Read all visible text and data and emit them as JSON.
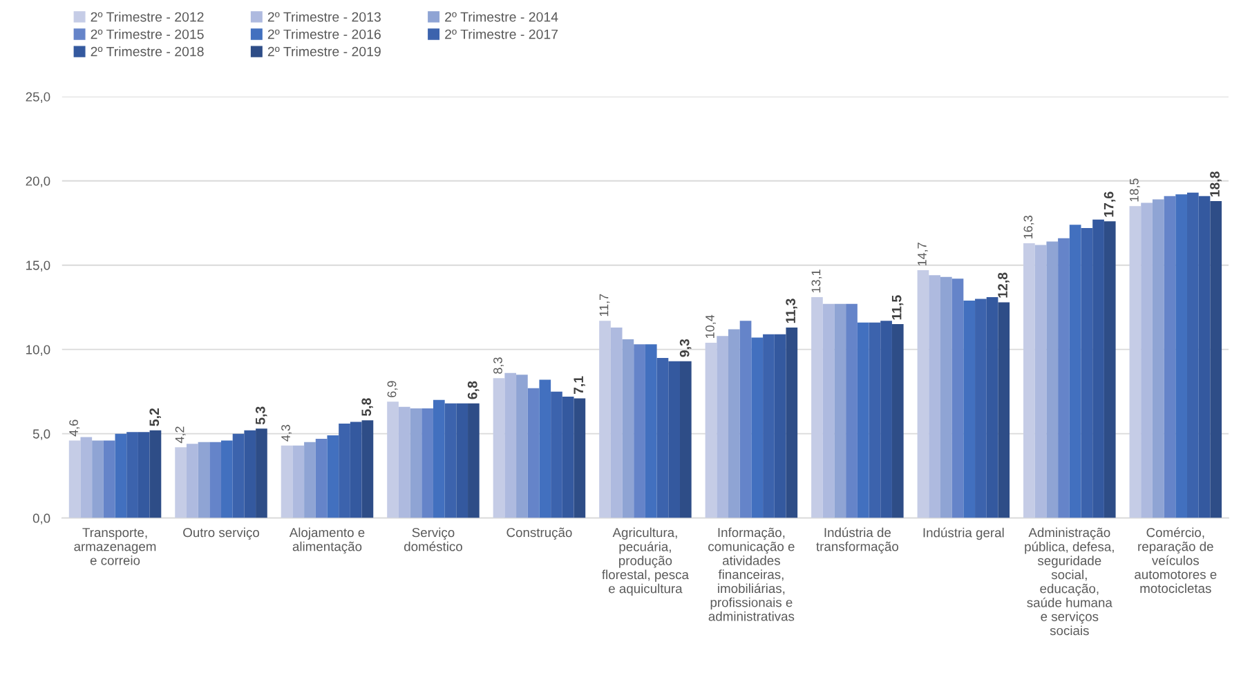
{
  "chart_data": {
    "type": "bar",
    "categories": [
      "Transporte,\narmazenagem\ne correio",
      "Outro serviço",
      "Alojamento e\nalimentação",
      "Serviço\ndoméstico",
      "Construção",
      "Agricultura,\npecuária,\nprodução\nflorestal, pesca\ne aquicultura",
      "Informação,\ncomunicação e\natividades\nfinanceiras,\nimobiliárias,\nprofissionais e\nadministrativas",
      "Indústria de\ntransformação",
      "Indústria geral",
      "Administração\npública, defesa,\nseguridade\nsocial,\neducação,\nsaúde humana\ne serviços\nsociais",
      "Comércio,\nreparação de\nveículos\nautomotores e\nmotocicletas"
    ],
    "series": [
      {
        "name": "2º Trimestre - 2012",
        "color": "#c5cce6",
        "values": [
          4.6,
          4.2,
          4.3,
          6.9,
          8.3,
          11.7,
          10.4,
          13.1,
          14.7,
          16.3,
          18.5
        ],
        "value_labels": [
          "4,6",
          "4,2",
          "4,3",
          "6,9",
          "8,3",
          "11,7",
          "10,4",
          "13,1",
          "14,7",
          "16,3",
          "18,5"
        ]
      },
      {
        "name": "2º Trimestre - 2013",
        "color": "#aebadf",
        "values": [
          4.8,
          4.4,
          4.3,
          6.6,
          8.6,
          11.3,
          10.8,
          12.7,
          14.4,
          16.2,
          18.7
        ]
      },
      {
        "name": "2º Trimestre - 2014",
        "color": "#8fa4d4",
        "values": [
          4.6,
          4.5,
          4.5,
          6.5,
          8.5,
          10.6,
          11.2,
          12.7,
          14.3,
          16.4,
          18.9
        ]
      },
      {
        "name": "2º Trimestre - 2015",
        "color": "#6584c9",
        "values": [
          4.6,
          4.5,
          4.7,
          6.5,
          7.7,
          10.3,
          11.7,
          12.7,
          14.2,
          16.6,
          19.1
        ]
      },
      {
        "name": "2º Trimestre - 2016",
        "color": "#4270bf",
        "values": [
          5.0,
          4.6,
          4.9,
          7.0,
          8.2,
          10.3,
          10.7,
          11.6,
          12.9,
          17.4,
          19.2
        ]
      },
      {
        "name": "2º Trimestre - 2017",
        "color": "#3c63ad",
        "values": [
          5.1,
          5.0,
          5.6,
          6.8,
          7.5,
          9.5,
          10.9,
          11.6,
          13.0,
          17.2,
          19.3
        ]
      },
      {
        "name": "2º Trimestre - 2018",
        "color": "#34599f",
        "values": [
          5.1,
          5.2,
          5.7,
          6.8,
          7.2,
          9.3,
          10.9,
          11.7,
          13.1,
          17.7,
          19.1
        ]
      },
      {
        "name": "2º Trimestre - 2019",
        "color": "#2e4d87",
        "values": [
          5.2,
          5.3,
          5.8,
          6.8,
          7.1,
          9.3,
          11.3,
          11.5,
          12.8,
          17.6,
          18.8
        ],
        "value_labels": [
          "5,2",
          "5,3",
          "5,8",
          "6,8",
          "7,1",
          "9,3",
          "11,3",
          "11,5",
          "12,8",
          "17,6",
          "18,8"
        ]
      }
    ],
    "ylim": [
      0,
      25
    ],
    "yticks": [
      {
        "value": 0,
        "label": "0,0"
      },
      {
        "value": 5,
        "label": "5,0"
      },
      {
        "value": 10,
        "label": "10,0"
      },
      {
        "value": 15,
        "label": "15,0"
      },
      {
        "value": 20,
        "label": "20,0"
      },
      {
        "value": 25,
        "label": "25,0"
      }
    ],
    "grid": "y",
    "legend": "top left"
  }
}
